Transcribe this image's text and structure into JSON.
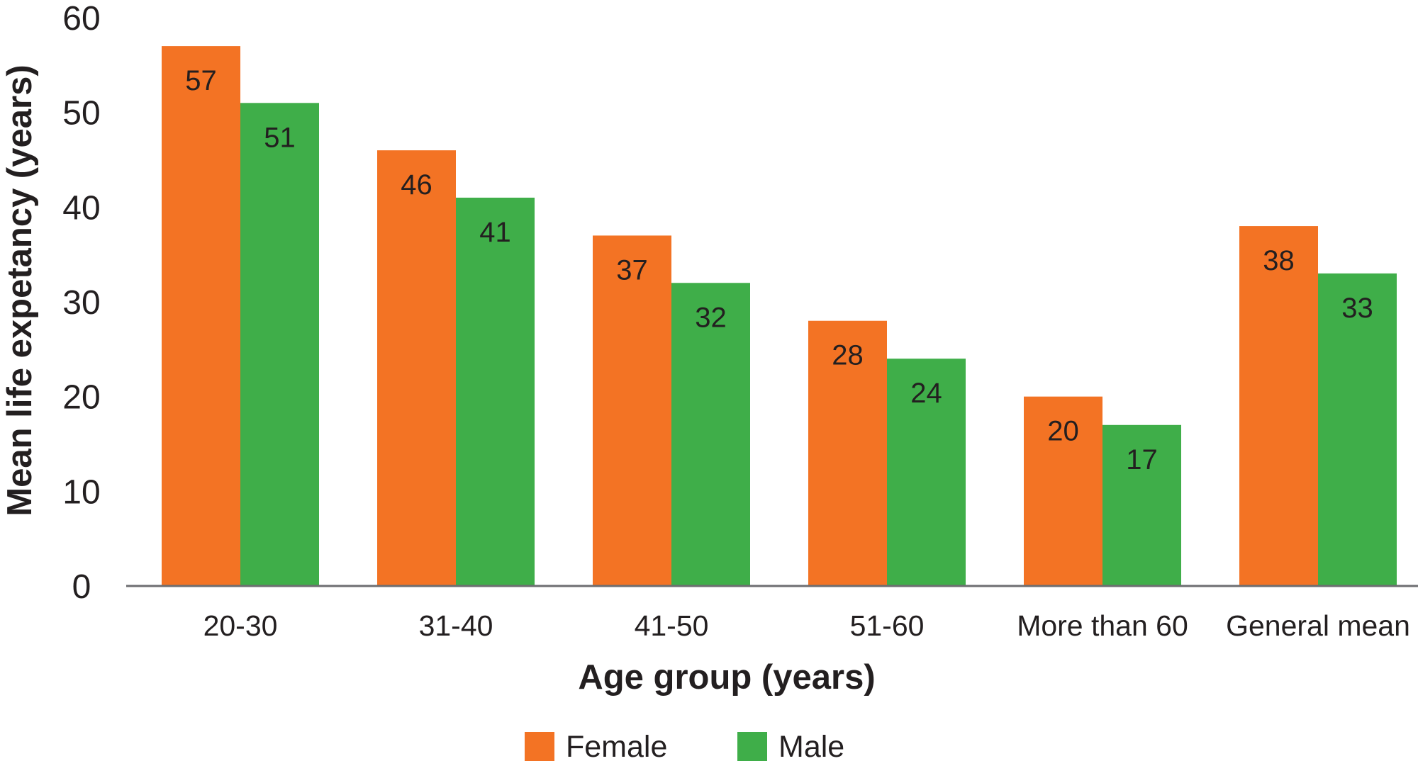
{
  "chart_data": {
    "type": "bar",
    "title": "",
    "xlabel": "Age group (years)",
    "ylabel": "Mean life expetancy (years)",
    "ylim": [
      0,
      60
    ],
    "yticks": [
      0,
      10,
      20,
      30,
      40,
      50,
      60
    ],
    "categories": [
      "20-30",
      "31-40",
      "41-50",
      "51-60",
      "More than 60",
      "General mean"
    ],
    "series": [
      {
        "name": "Female",
        "color": "#f37324",
        "values": [
          57,
          46,
          37,
          28,
          20,
          38
        ]
      },
      {
        "name": "Male",
        "color": "#3fae49",
        "values": [
          51,
          41,
          32,
          24,
          17,
          33
        ]
      }
    ],
    "data_labels": true,
    "grid": false,
    "legend_position": "bottom-center"
  }
}
